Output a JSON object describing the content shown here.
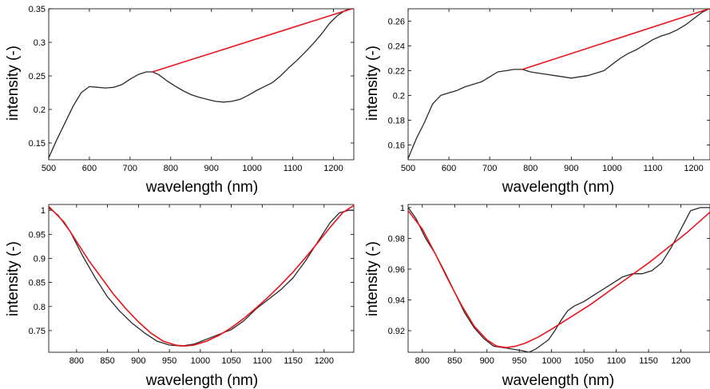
{
  "figure": {
    "colors": {
      "measured": "#2a2a2a",
      "reference": "#e8141c",
      "axis": "#000000"
    }
  },
  "chart_data": [
    {
      "type": "line",
      "xlabel": "wavelength (nm)",
      "ylabel": "intensity (-)",
      "xlim": [
        500,
        1250
      ],
      "ylim": [
        0.125,
        0.35
      ],
      "xticks": [
        500,
        600,
        700,
        800,
        900,
        1000,
        1100,
        1200
      ],
      "yticks": [
        0.15,
        0.2,
        0.25,
        0.3,
        0.35
      ],
      "xtick_labels": [
        "500",
        "600",
        "700",
        "800",
        "900",
        "1000",
        "1100",
        "1200"
      ],
      "ytick_labels": [
        "0.15",
        "0.2",
        "0.25",
        "0.3",
        "0.35"
      ],
      "series": [
        {
          "color": "#2a2a2a",
          "x": [
            500,
            520,
            540,
            560,
            580,
            600,
            620,
            640,
            660,
            680,
            700,
            720,
            740,
            755,
            770,
            790,
            810,
            830,
            850,
            870,
            890,
            910,
            930,
            950,
            970,
            990,
            1010,
            1030,
            1050,
            1070,
            1090,
            1110,
            1130,
            1150,
            1170,
            1190,
            1210,
            1230,
            1245
          ],
          "y": [
            0.128,
            0.155,
            0.18,
            0.205,
            0.225,
            0.234,
            0.233,
            0.232,
            0.233,
            0.237,
            0.245,
            0.252,
            0.256,
            0.256,
            0.252,
            0.243,
            0.235,
            0.228,
            0.222,
            0.218,
            0.215,
            0.212,
            0.211,
            0.212,
            0.215,
            0.221,
            0.228,
            0.234,
            0.24,
            0.25,
            0.262,
            0.273,
            0.285,
            0.298,
            0.312,
            0.328,
            0.34,
            0.348,
            0.35
          ]
        },
        {
          "color": "#e8141c",
          "x": [
            755,
            1245
          ],
          "y": [
            0.256,
            0.35
          ]
        }
      ]
    },
    {
      "type": "line",
      "xlabel": "wavelength (nm)",
      "ylabel": "intensity (-)",
      "xlim": [
        500,
        1240
      ],
      "ylim": [
        0.148,
        0.27
      ],
      "xticks": [
        500,
        600,
        700,
        800,
        900,
        1000,
        1100,
        1200
      ],
      "yticks": [
        0.16,
        0.18,
        0.2,
        0.22,
        0.24,
        0.26
      ],
      "xtick_labels": [
        "500",
        "600",
        "700",
        "800",
        "900",
        "1000",
        "1100",
        "1200"
      ],
      "ytick_labels": [
        "0.16",
        "0.18",
        "0.2",
        "0.22",
        "0.24",
        "0.26"
      ],
      "series": [
        {
          "color": "#2a2a2a",
          "x": [
            500,
            520,
            540,
            560,
            580,
            600,
            620,
            640,
            660,
            680,
            700,
            720,
            740,
            760,
            780,
            800,
            820,
            840,
            860,
            880,
            900,
            920,
            940,
            960,
            980,
            1000,
            1020,
            1040,
            1060,
            1080,
            1100,
            1120,
            1140,
            1160,
            1180,
            1200,
            1220,
            1238
          ],
          "y": [
            0.149,
            0.165,
            0.178,
            0.193,
            0.2,
            0.202,
            0.204,
            0.207,
            0.209,
            0.211,
            0.215,
            0.219,
            0.22,
            0.221,
            0.221,
            0.219,
            0.218,
            0.217,
            0.216,
            0.215,
            0.214,
            0.215,
            0.216,
            0.218,
            0.22,
            0.225,
            0.23,
            0.234,
            0.237,
            0.241,
            0.245,
            0.248,
            0.25,
            0.253,
            0.257,
            0.262,
            0.267,
            0.27
          ]
        },
        {
          "color": "#e8141c",
          "x": [
            780,
            1238
          ],
          "y": [
            0.221,
            0.27
          ]
        }
      ]
    },
    {
      "type": "line",
      "xlabel": "wavelength (nm)",
      "ylabel": "intensity (-)",
      "xlim": [
        755,
        1248
      ],
      "ylim": [
        0.705,
        1.012
      ],
      "xticks": [
        800,
        850,
        900,
        950,
        1000,
        1050,
        1100,
        1150,
        1200
      ],
      "yticks": [
        0.75,
        0.8,
        0.85,
        0.9,
        0.95,
        1
      ],
      "xtick_labels": [
        "800",
        "850",
        "900",
        "950",
        "1000",
        "1050",
        "1100",
        "1150",
        "1200"
      ],
      "ytick_labels": [
        "0.75",
        "0.8",
        "0.85",
        "0.9",
        "0.95",
        "1"
      ],
      "series": [
        {
          "color": "#2a2a2a",
          "x": [
            755,
            770,
            790,
            810,
            830,
            850,
            870,
            890,
            910,
            930,
            950,
            970,
            990,
            1010,
            1030,
            1050,
            1070,
            1090,
            1110,
            1130,
            1150,
            1170,
            1190,
            1210,
            1225,
            1240,
            1248
          ],
          "y": [
            1.005,
            0.99,
            0.955,
            0.905,
            0.86,
            0.82,
            0.79,
            0.765,
            0.745,
            0.728,
            0.72,
            0.718,
            0.722,
            0.732,
            0.742,
            0.752,
            0.77,
            0.795,
            0.815,
            0.835,
            0.86,
            0.895,
            0.935,
            0.975,
            0.995,
            1.0,
            1.0
          ]
        },
        {
          "color": "#e8141c",
          "x": [
            755,
            780,
            800,
            820,
            840,
            860,
            880,
            900,
            920,
            940,
            960,
            975,
            990,
            1010,
            1030,
            1050,
            1070,
            1090,
            1110,
            1130,
            1150,
            1170,
            1190,
            1210,
            1230,
            1248
          ],
          "y": [
            1.008,
            0.975,
            0.935,
            0.895,
            0.86,
            0.825,
            0.795,
            0.768,
            0.745,
            0.728,
            0.72,
            0.718,
            0.72,
            0.728,
            0.74,
            0.756,
            0.775,
            0.797,
            0.82,
            0.845,
            0.872,
            0.902,
            0.933,
            0.965,
            0.995,
            1.01
          ]
        }
      ]
    },
    {
      "type": "line",
      "xlabel": "wavelength (nm)",
      "ylabel": "intensity (-)",
      "xlim": [
        778,
        1245
      ],
      "ylim": [
        0.906,
        1.002
      ],
      "xticks": [
        800,
        850,
        900,
        950,
        1000,
        1050,
        1100,
        1150,
        1200
      ],
      "yticks": [
        0.92,
        0.94,
        0.96,
        0.98,
        1
      ],
      "xtick_labels": [
        "800",
        "850",
        "900",
        "950",
        "1000",
        "1050",
        "1100",
        "1150",
        "1200"
      ],
      "ytick_labels": [
        "0.92",
        "0.94",
        "0.96",
        "0.98",
        "1"
      ],
      "series": [
        {
          "color": "#2a2a2a",
          "x": [
            778,
            790,
            805,
            820,
            835,
            850,
            865,
            880,
            895,
            910,
            925,
            940,
            955,
            965,
            975,
            985,
            995,
            1005,
            1015,
            1025,
            1035,
            1050,
            1065,
            1080,
            1095,
            1110,
            1125,
            1140,
            1155,
            1170,
            1185,
            1200,
            1215,
            1230,
            1245
          ],
          "y": [
            1.0,
            0.993,
            0.98,
            0.97,
            0.958,
            0.945,
            0.932,
            0.922,
            0.915,
            0.91,
            0.909,
            0.908,
            0.907,
            0.906,
            0.908,
            0.911,
            0.914,
            0.92,
            0.927,
            0.933,
            0.936,
            0.939,
            0.943,
            0.947,
            0.951,
            0.955,
            0.957,
            0.957,
            0.959,
            0.964,
            0.974,
            0.986,
            0.998,
            1.0,
            1.0
          ]
        },
        {
          "color": "#e8141c",
          "x": [
            778,
            800,
            820,
            840,
            860,
            880,
            900,
            915,
            930,
            945,
            960,
            980,
            1000,
            1030,
            1060,
            1090,
            1120,
            1150,
            1180,
            1210,
            1245
          ],
          "y": [
            0.998,
            0.986,
            0.97,
            0.953,
            0.937,
            0.923,
            0.914,
            0.91,
            0.909,
            0.91,
            0.912,
            0.916,
            0.921,
            0.929,
            0.937,
            0.946,
            0.955,
            0.964,
            0.974,
            0.984,
            0.997
          ]
        }
      ]
    }
  ]
}
